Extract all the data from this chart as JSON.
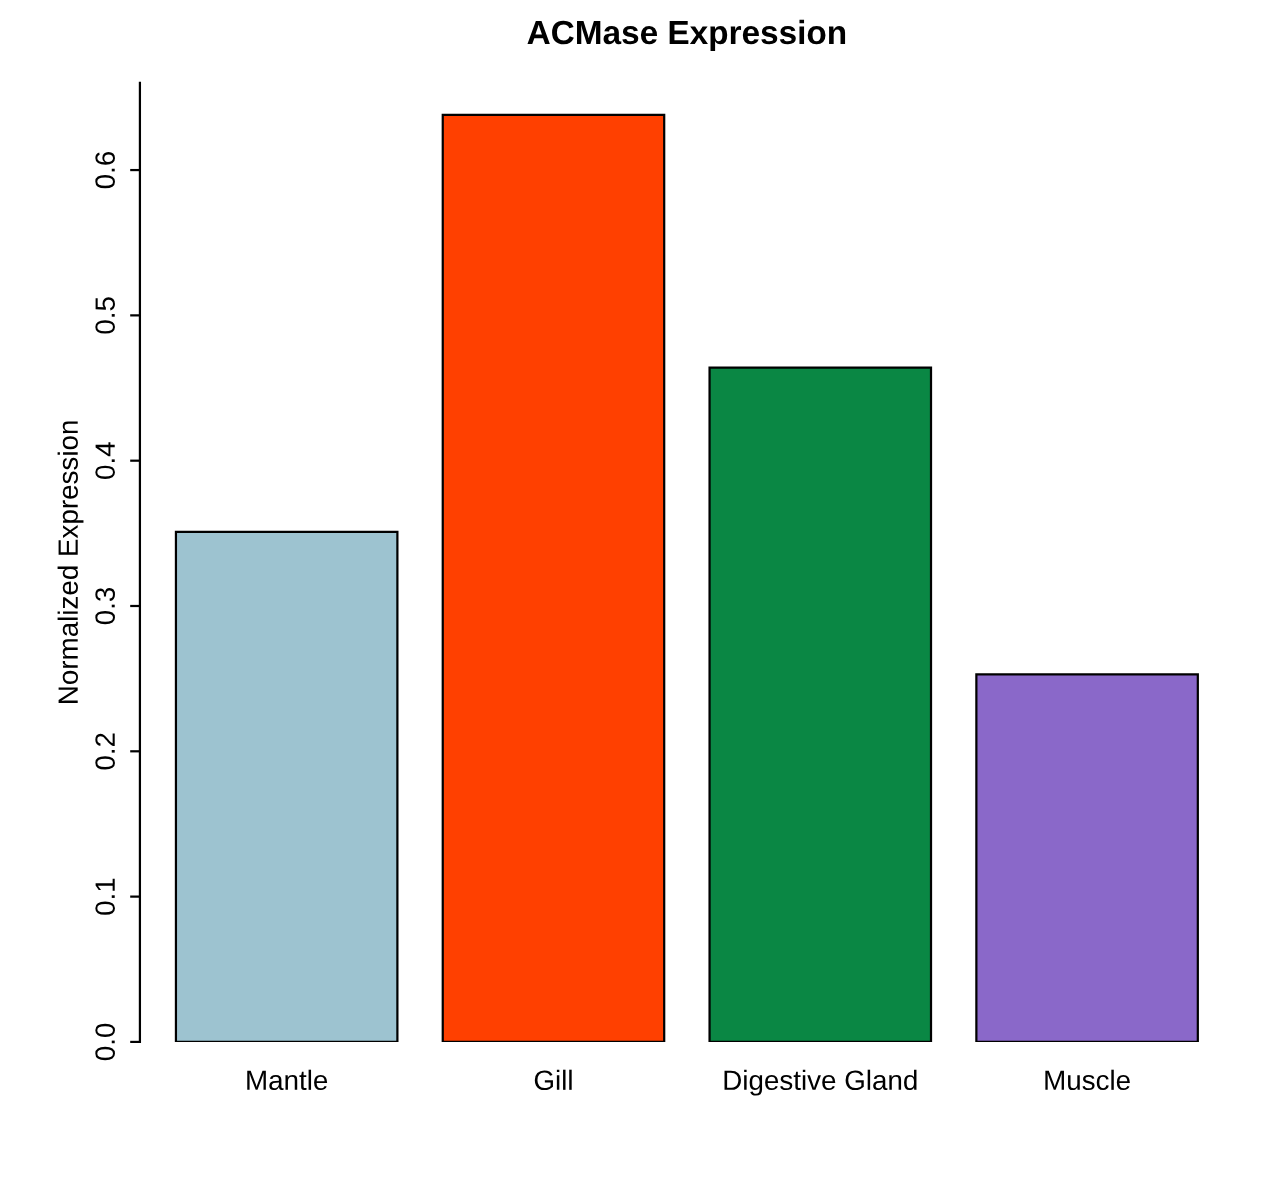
{
  "chart_data": {
    "type": "bar",
    "title": "ACMase Expression",
    "ylabel": "Normalized Expression",
    "categories": [
      "Mantle",
      "Gill",
      "Digestive Gland",
      "Muscle"
    ],
    "values": [
      0.351,
      0.638,
      0.464,
      0.253
    ],
    "colors": [
      "#9dc3d0",
      "#ff4000",
      "#0a8744",
      "#8a68c9"
    ],
    "ylim": [
      0,
      0.66
    ],
    "yticks": [
      {
        "value": 0,
        "label": "0.0"
      },
      0.1,
      0.2,
      0.3,
      0.4,
      0.5,
      0.6
    ],
    "grid": false,
    "legend": false
  }
}
